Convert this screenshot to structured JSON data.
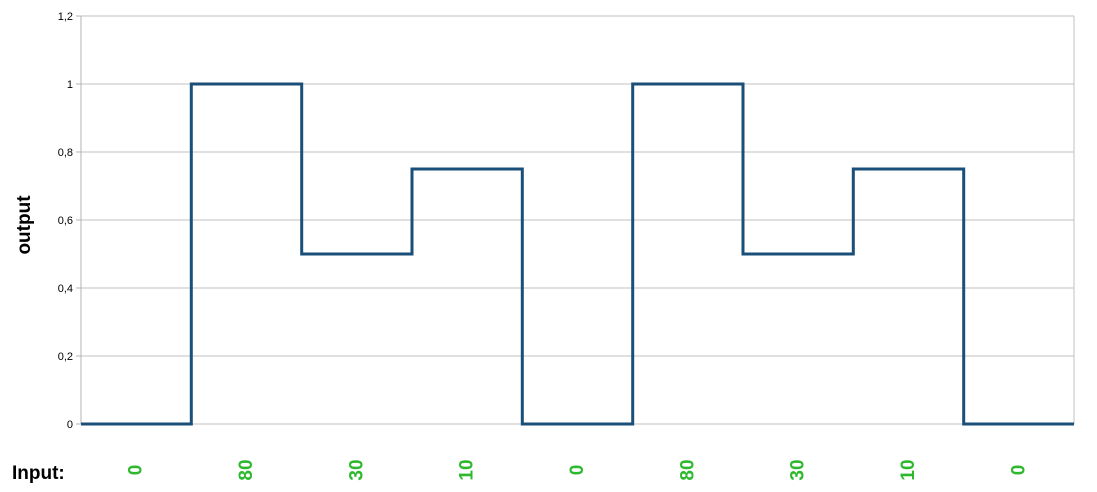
{
  "chart_data": {
    "type": "line",
    "ylabel": "output",
    "xlabel": "Input:",
    "ylim": [
      0,
      1.2
    ],
    "y_ticks": [
      "0",
      "0,2",
      "0,4",
      "0,6",
      "0,8",
      "1",
      "1,2"
    ],
    "y_tick_values": [
      0,
      0.2,
      0.4,
      0.6,
      0.8,
      1.0,
      1.2
    ],
    "grid": true,
    "step": true,
    "categories": [
      "0",
      "80",
      "30",
      "10",
      "0",
      "80",
      "30",
      "10",
      "0"
    ],
    "values": [
      0,
      1,
      0.5,
      0.75,
      0,
      1,
      0.5,
      0.75,
      0
    ],
    "colors": {
      "line": "#1a4f7a",
      "grid": "#c0c0c0",
      "axis": "#b3b3b3",
      "input_values": "#2eb82e"
    }
  }
}
